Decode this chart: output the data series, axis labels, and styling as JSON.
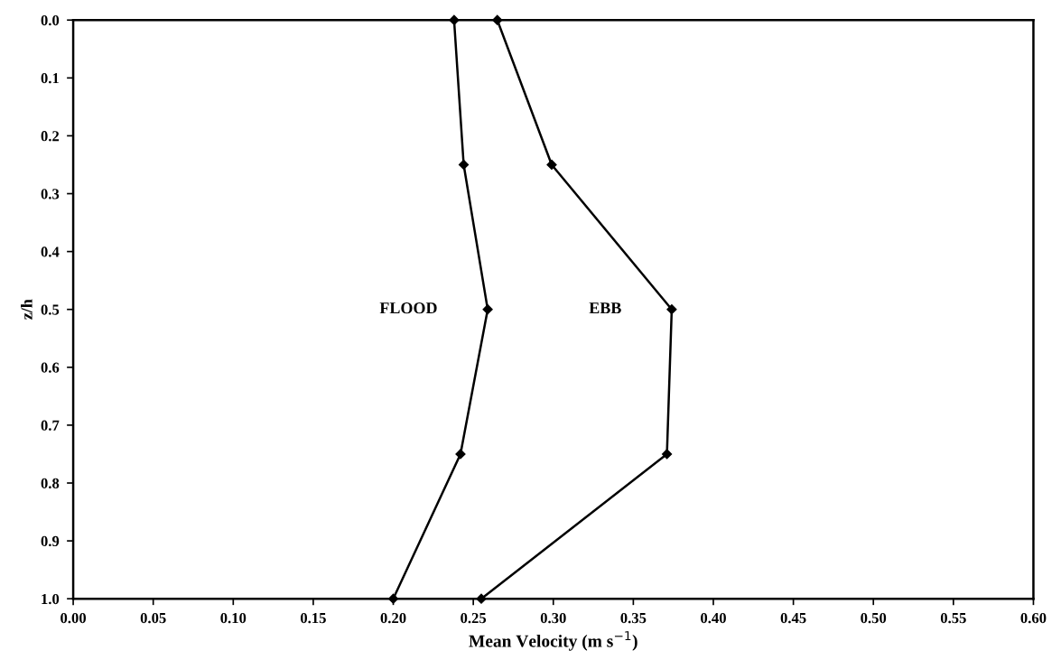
{
  "chart_data": {
    "type": "line",
    "xlabel": "Mean Velocity (m s$^{−1}$)",
    "ylabel": "z/h",
    "xlim": [
      0,
      0.6
    ],
    "ylim": [
      1.0,
      0.0
    ],
    "xticks": [
      {
        "value": 0,
        "label": "0.00"
      },
      {
        "value": 0.05,
        "label": "0.05"
      },
      {
        "value": 0.1,
        "label": "0.10"
      },
      {
        "value": 0.15,
        "label": "0.15"
      },
      {
        "value": 0.2,
        "label": "0.20"
      },
      {
        "value": 0.25,
        "label": "0.25"
      },
      {
        "value": 0.3,
        "label": "0.30"
      },
      {
        "value": 0.35,
        "label": "0.35"
      },
      {
        "value": 0.4,
        "label": "0.40"
      },
      {
        "value": 0.45,
        "label": "0.45"
      },
      {
        "value": 0.5,
        "label": "0.50"
      },
      {
        "value": 0.55,
        "label": "0.55"
      },
      {
        "value": 0.6,
        "label": "0.60"
      }
    ],
    "yticks": [
      {
        "value": 0,
        "label": "0.0"
      },
      {
        "value": 0.1,
        "label": "0.1"
      },
      {
        "value": 0.2,
        "label": "0.2"
      },
      {
        "value": 0.3,
        "label": "0.3"
      },
      {
        "value": 0.4,
        "label": "0.4"
      },
      {
        "value": 0.5,
        "label": "0.5"
      },
      {
        "value": 0.6,
        "label": "0.6"
      },
      {
        "value": 0.7,
        "label": "0.7"
      },
      {
        "value": 0.8,
        "label": "0.8"
      },
      {
        "value": 0.9,
        "label": "0.9"
      },
      {
        "value": 1.0,
        "label": "1.0"
      }
    ],
    "marker": "diamond",
    "line_style": "solid",
    "grid": false,
    "legend": false,
    "series": [
      {
        "name": "FLOOD",
        "color": "#000000",
        "x": [
          0.238,
          0.244,
          0.259,
          0.242,
          0.2
        ],
        "values": [
          0,
          0.25,
          0.5,
          0.75,
          1.0
        ]
      },
      {
        "name": "EBB",
        "color": "#000000",
        "x": [
          0.265,
          0.299,
          0.374,
          0.371,
          0.255
        ],
        "values": [
          0,
          0.25,
          0.5,
          0.75,
          1.0
        ]
      }
    ]
  }
}
